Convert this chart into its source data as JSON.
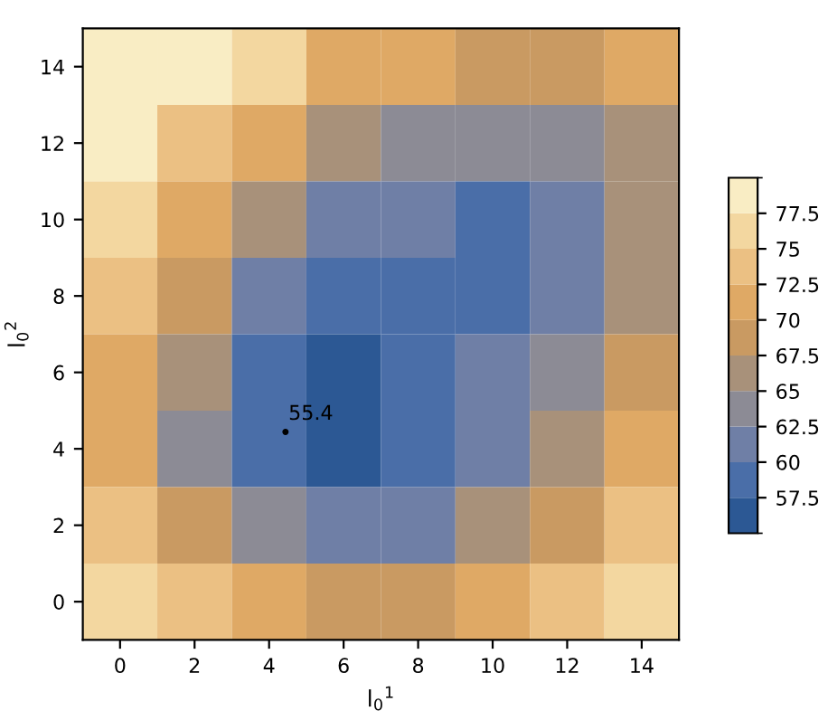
{
  "chart_data": {
    "type": "heatmap",
    "xlabel": "l$_{0}$$^{1}$",
    "ylabel": "l$_{0}$$^{2}$",
    "categories": [
      "0",
      "2",
      "4",
      "6",
      "8",
      "10",
      "12",
      "14"
    ],
    "y_categories": [
      "14",
      "12",
      "10",
      "8",
      "6",
      "4",
      "2",
      "0"
    ],
    "cells": [
      [
        80,
        78,
        75,
        72,
        70,
        69,
        69,
        70
      ],
      [
        78,
        74,
        70,
        66,
        64,
        63.5,
        64,
        67
      ],
      [
        76,
        71,
        66,
        62,
        60,
        58,
        61,
        65
      ],
      [
        74,
        68,
        62,
        59,
        58.5,
        59,
        61,
        66
      ],
      [
        72,
        65,
        58,
        56.5,
        57.5,
        60,
        63,
        68
      ],
      [
        71,
        64,
        58,
        56,
        57.5,
        61,
        65,
        70
      ],
      [
        74,
        68,
        63,
        61,
        62,
        65,
        69,
        73
      ],
      [
        77,
        73,
        70,
        68,
        69,
        71,
        74,
        77
      ]
    ],
    "clim": [
      55,
      80
    ],
    "cticks": [
      57.5,
      60,
      62.5,
      65,
      67.5,
      70,
      72.5,
      75,
      77.5
    ],
    "colors": [
      "#2c5894",
      "#4a6ea8",
      "#6f7fa6",
      "#8c8b95",
      "#a8917a",
      "#c99a62",
      "#dfa965",
      "#ebc083",
      "#f3d7a0",
      "#f9edc4"
    ],
    "annotations": [
      "55.4"
    ]
  }
}
